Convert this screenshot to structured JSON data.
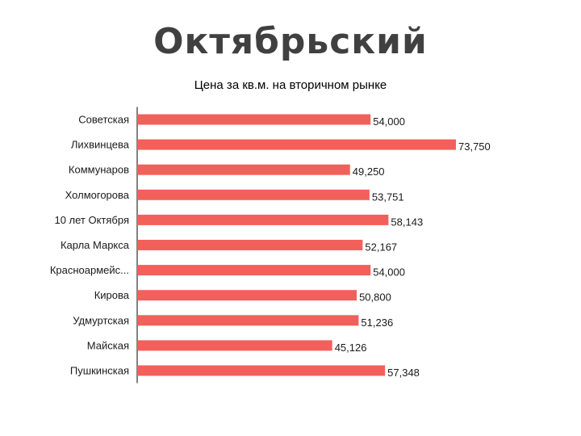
{
  "slide": {
    "title": "Октябрьский"
  },
  "chart_data": {
    "type": "bar",
    "orientation": "horizontal",
    "title": "Цена за кв.м.  на вторичном рынке",
    "xlabel": "",
    "ylabel": "",
    "xlim": [
      0,
      80000
    ],
    "grid": false,
    "colors": {
      "bar": "#f2605b",
      "text": "#1a1a1a",
      "title": "#404040"
    },
    "categories": [
      "Советская",
      "Лихвинцева",
      "Коммунаров",
      "Холмогорова",
      "10 лет Октября",
      "Карла Маркса",
      "Красноармейс...",
      "Кирова",
      "Удмуртская",
      "Майская",
      "Пушкинская"
    ],
    "values": [
      54000,
      73750,
      49250,
      53751,
      58143,
      52167,
      54000,
      50800,
      51236,
      45126,
      57348
    ],
    "value_labels": [
      "54,000",
      "73,750",
      "49,250",
      "53,751",
      "58,143",
      "52,167",
      "54,000",
      "50,800",
      "51,236",
      "45,126",
      "57,348"
    ]
  }
}
